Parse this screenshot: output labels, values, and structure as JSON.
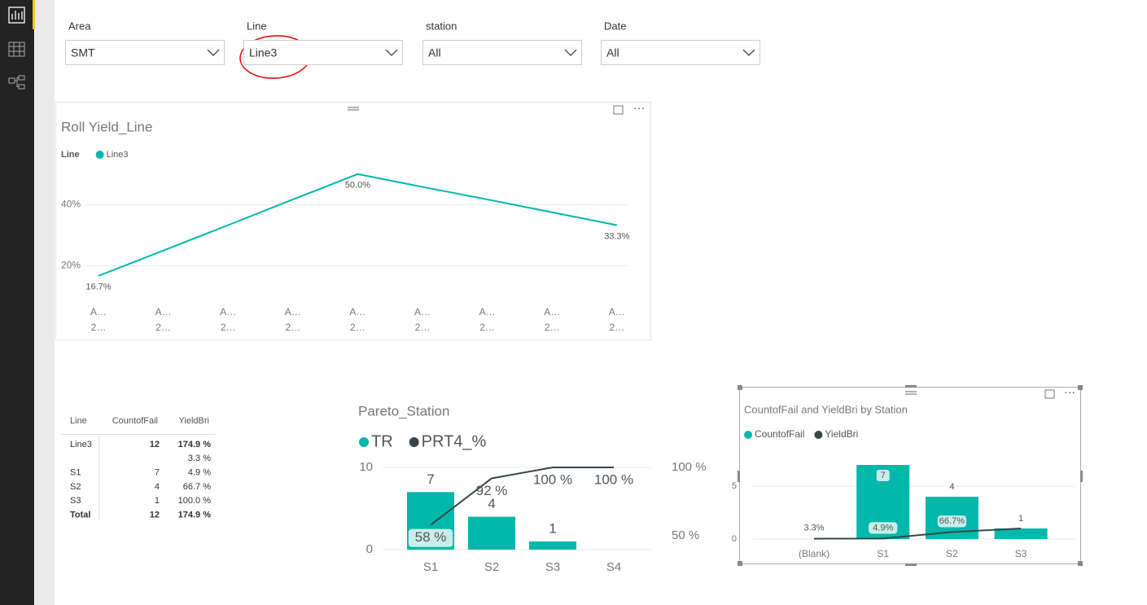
{
  "slicers": [
    {
      "label": "Area",
      "value": "SMT"
    },
    {
      "label": "Line",
      "value": "Line3"
    },
    {
      "label": "station",
      "value": "All"
    },
    {
      "label": "Date",
      "value": "All"
    }
  ],
  "table": {
    "columns": [
      "Line",
      "CountofFail",
      "YieldBri"
    ],
    "rows": [
      [
        "Line3",
        12,
        "174.9 %"
      ],
      [
        null,
        null,
        "3.3 %"
      ],
      [
        "S1",
        7,
        "4.9 %"
      ],
      [
        "S2",
        4,
        "66.7 %"
      ],
      [
        "S3",
        1,
        "100.0 %"
      ]
    ],
    "total": [
      "Total",
      12,
      "174.9 %"
    ]
  },
  "chart_data": [
    {
      "type": "line",
      "title": "Roll Yield_Line",
      "legend_title": "Line",
      "categories": [
        [
          "A…",
          "2…"
        ],
        [
          "A…",
          "2…"
        ],
        [
          "A…",
          "2…"
        ],
        [
          "A…",
          "2…"
        ],
        [
          "A…",
          "2…"
        ],
        [
          "A…",
          "2…"
        ],
        [
          "A…",
          "2…"
        ],
        [
          "A…",
          "2…"
        ],
        [
          "A…",
          "2…"
        ]
      ],
      "series": [
        {
          "name": "Line3",
          "color": "#01B8AA",
          "values": [
            16.7,
            25.0,
            33.3,
            41.7,
            50.0,
            45.8,
            41.7,
            37.5,
            33.3
          ],
          "value_labels": [
            "16.7%",
            null,
            null,
            null,
            "50.0%",
            null,
            null,
            null,
            "33.3%"
          ]
        }
      ],
      "ylim": [
        10,
        55
      ],
      "yticks": [
        {
          "value": 20,
          "label": "20%"
        },
        {
          "value": 40,
          "label": "40%"
        }
      ],
      "grid": true
    },
    {
      "type": "combo",
      "title": "Pareto_Station",
      "categories": [
        "S1",
        "S2",
        "S3",
        "S4"
      ],
      "series": [
        {
          "name": "TR",
          "color": "#01B8AA",
          "values": [
            7,
            4,
            1,
            null
          ]
        },
        {
          "name": "PRT4_%",
          "color": "#374649",
          "axis": "y2",
          "values": [
            58,
            92,
            100,
            100
          ],
          "value_labels": [
            "58 %",
            "92 %",
            "100 %",
            "100 %"
          ]
        }
      ],
      "ylim": [
        0,
        10
      ],
      "yticks": [
        0,
        10
      ],
      "y2lim": [
        40,
        100
      ],
      "y2ticks": [
        {
          "value": 50,
          "label": "50 %"
        },
        {
          "value": 100,
          "label": "100 %"
        }
      ],
      "grid": true
    },
    {
      "type": "combo",
      "title": "CountofFail and YieldBri by Station",
      "categories": [
        "(Blank)",
        "S1",
        "S2",
        "S3"
      ],
      "series": [
        {
          "name": "CountofFail",
          "color": "#01B8AA",
          "values": [
            null,
            7,
            4,
            1
          ]
        },
        {
          "name": "YieldBri",
          "color": "#374649",
          "axis": "y2",
          "values": [
            3.3,
            4.9,
            66.7,
            100.0
          ],
          "value_labels": [
            "3.3%",
            "4.9%",
            "66.7%",
            null
          ]
        }
      ],
      "ylim": [
        0,
        8
      ],
      "yticks": [
        0,
        5
      ],
      "y2lim": [
        0,
        800
      ],
      "grid": true
    }
  ]
}
